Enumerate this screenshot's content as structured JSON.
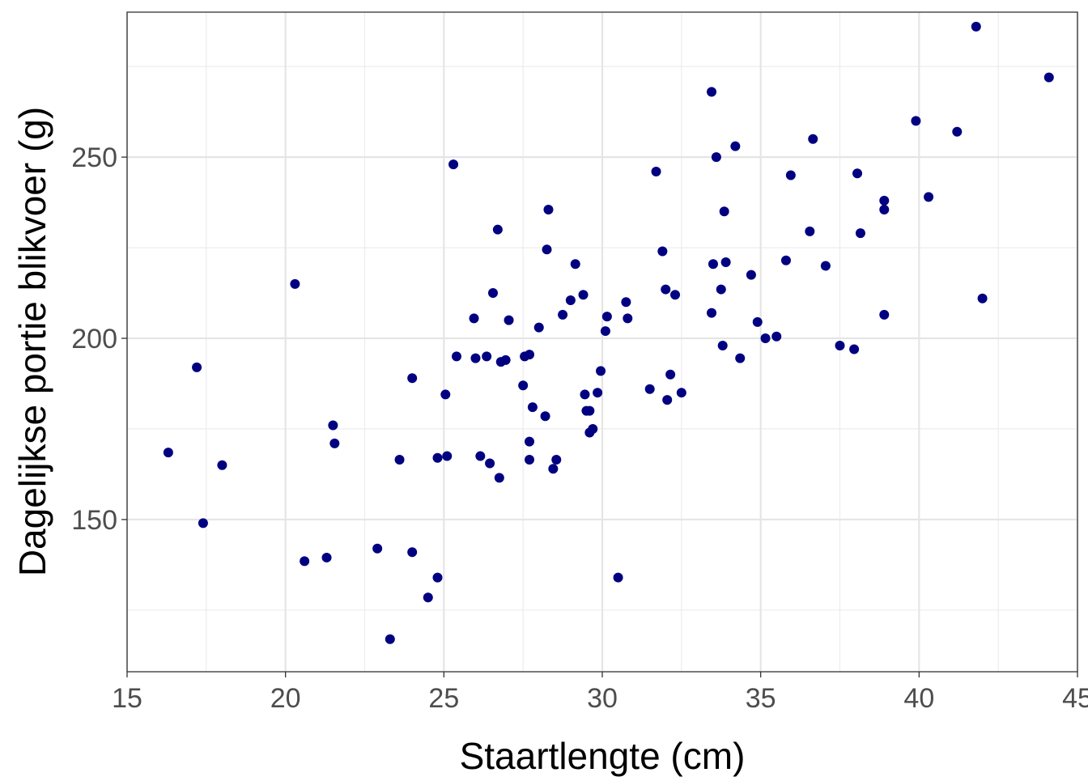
{
  "chart_data": {
    "type": "scatter",
    "xlabel": "Staartlengte (cm)",
    "ylabel": "Dagelijkse portie blikvoer (g)",
    "xlim": [
      15,
      45
    ],
    "ylim": [
      108,
      290
    ],
    "x_ticks": [
      15,
      20,
      25,
      30,
      35,
      40,
      45
    ],
    "y_ticks": [
      150,
      200,
      250
    ],
    "x_tick_labels": [
      "15",
      "20",
      "25",
      "30",
      "35",
      "40",
      "45"
    ],
    "y_tick_labels": [
      "150",
      "200",
      "250"
    ],
    "grid": true,
    "theme": "bw",
    "point_color": "#000080",
    "points": [
      [
        16.3,
        168.5
      ],
      [
        17.2,
        192
      ],
      [
        17.4,
        149
      ],
      [
        18.0,
        165
      ],
      [
        20.3,
        215
      ],
      [
        20.6,
        138.5
      ],
      [
        21.3,
        139.5
      ],
      [
        21.5,
        176
      ],
      [
        21.55,
        171
      ],
      [
        22.9,
        142
      ],
      [
        23.3,
        117
      ],
      [
        23.6,
        166.5
      ],
      [
        24.0,
        189
      ],
      [
        24.0,
        141
      ],
      [
        24.5,
        128.5
      ],
      [
        24.8,
        167
      ],
      [
        24.8,
        134
      ],
      [
        25.05,
        184.5
      ],
      [
        25.1,
        167.5
      ],
      [
        25.3,
        248
      ],
      [
        25.4,
        195
      ],
      [
        25.95,
        205.5
      ],
      [
        26.0,
        194.5
      ],
      [
        26.15,
        167.5
      ],
      [
        26.35,
        195
      ],
      [
        26.45,
        165.5
      ],
      [
        26.55,
        212.5
      ],
      [
        26.7,
        230
      ],
      [
        26.75,
        161.5
      ],
      [
        26.8,
        193.5
      ],
      [
        26.95,
        194
      ],
      [
        27.05,
        205
      ],
      [
        27.5,
        187
      ],
      [
        27.55,
        195
      ],
      [
        27.7,
        195.5
      ],
      [
        27.7,
        171.5
      ],
      [
        27.7,
        166.5
      ],
      [
        27.8,
        181
      ],
      [
        28.0,
        203
      ],
      [
        28.2,
        178.5
      ],
      [
        28.25,
        224.5
      ],
      [
        28.3,
        235.5
      ],
      [
        28.45,
        164
      ],
      [
        28.55,
        166.5
      ],
      [
        28.75,
        206.5
      ],
      [
        29.0,
        210.5
      ],
      [
        29.15,
        220.5
      ],
      [
        29.4,
        212
      ],
      [
        29.45,
        184.5
      ],
      [
        29.5,
        180
      ],
      [
        29.6,
        174
      ],
      [
        29.6,
        180
      ],
      [
        29.7,
        175
      ],
      [
        29.85,
        185
      ],
      [
        29.95,
        191
      ],
      [
        30.1,
        202
      ],
      [
        30.15,
        206
      ],
      [
        30.5,
        134
      ],
      [
        30.75,
        210
      ],
      [
        30.8,
        205.5
      ],
      [
        31.5,
        186
      ],
      [
        31.7,
        246
      ],
      [
        31.9,
        224
      ],
      [
        32.0,
        213.5
      ],
      [
        32.05,
        183
      ],
      [
        32.15,
        190
      ],
      [
        32.3,
        212
      ],
      [
        32.5,
        185
      ],
      [
        33.45,
        207
      ],
      [
        33.45,
        268
      ],
      [
        33.5,
        220.5
      ],
      [
        33.6,
        250
      ],
      [
        33.75,
        213.5
      ],
      [
        33.8,
        198
      ],
      [
        33.85,
        235
      ],
      [
        33.9,
        221
      ],
      [
        34.2,
        253
      ],
      [
        34.35,
        194.5
      ],
      [
        34.7,
        217.5
      ],
      [
        34.9,
        204.5
      ],
      [
        35.15,
        200
      ],
      [
        35.5,
        200.5
      ],
      [
        35.8,
        221.5
      ],
      [
        35.95,
        245
      ],
      [
        36.55,
        229.5
      ],
      [
        36.65,
        255
      ],
      [
        37.05,
        220
      ],
      [
        37.5,
        198
      ],
      [
        37.95,
        197
      ],
      [
        38.05,
        245.5
      ],
      [
        38.15,
        229
      ],
      [
        38.9,
        206.5
      ],
      [
        38.9,
        235.5
      ],
      [
        38.9,
        238
      ],
      [
        39.9,
        260
      ],
      [
        40.3,
        239
      ],
      [
        41.2,
        257
      ],
      [
        41.8,
        286
      ],
      [
        42.0,
        211
      ],
      [
        44.1,
        272
      ]
    ]
  }
}
